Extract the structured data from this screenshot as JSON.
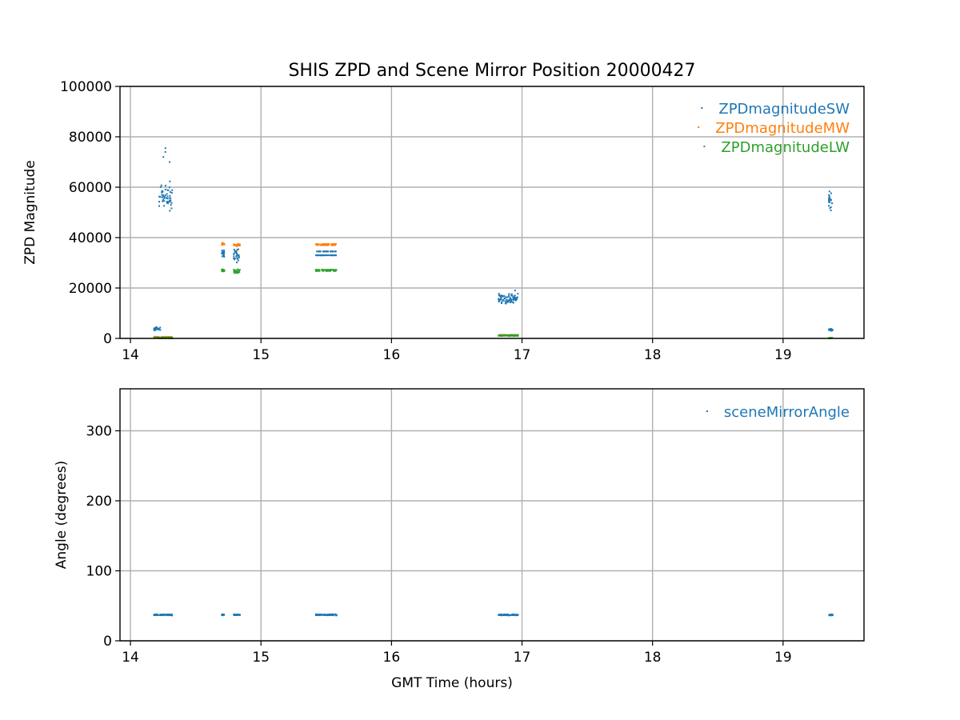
{
  "title": "SHIS ZPD and Scene Mirror Position 20000427",
  "colors": {
    "sw": "#1f77b4",
    "mw": "#ff7f0e",
    "lw": "#2ca02c",
    "angle": "#1f77b4",
    "grid": "#b0b0b0"
  },
  "chart_data": [
    {
      "type": "scatter",
      "title": "SHIS ZPD and Scene Mirror Position 20000427",
      "xlabel": "",
      "ylabel": "ZPD Magnitude",
      "xlim": [
        13.92,
        19.62
      ],
      "ylim": [
        0,
        100000
      ],
      "x_ticks": [
        14,
        15,
        16,
        17,
        18,
        19
      ],
      "x_tick_labels": [
        "14",
        "15",
        "16",
        "17",
        "18",
        "19"
      ],
      "y_ticks": [
        0,
        20000,
        40000,
        60000,
        80000,
        100000
      ],
      "y_tick_labels": [
        "0",
        "20000",
        "40000",
        "60000",
        "80000",
        "100000"
      ],
      "grid": true,
      "legend": "top-right",
      "series": [
        {
          "name": "ZPDmagnitudeSW",
          "color": "#1f77b4",
          "clusters": [
            {
              "x_range": [
                14.22,
                14.32
              ],
              "y_range": [
                48000,
                64000
              ],
              "outliers": [
                70000,
                72000,
                74000,
                75500
              ]
            },
            {
              "x_range": [
                14.18,
                14.23
              ],
              "y_range": [
                3000,
                4500
              ]
            },
            {
              "x_range": [
                14.7,
                14.72
              ],
              "y_range": [
                32000,
                35500
              ]
            },
            {
              "x_range": [
                14.79,
                14.84
              ],
              "y_range": [
                29000,
                36000
              ]
            },
            {
              "x_range": [
                15.42,
                15.58
              ],
              "y_values": [
                33000,
                34500
              ]
            },
            {
              "x_range": [
                16.82,
                16.97
              ],
              "y_range": [
                13000,
                18000
              ],
              "outliers": [
                19000
              ]
            },
            {
              "x_range": [
                19.35,
                19.38
              ],
              "y_range": [
                48000,
                61000
              ]
            },
            {
              "x_range": [
                19.35,
                19.38
              ],
              "y_range": [
                3000,
                4000
              ]
            }
          ]
        },
        {
          "name": "ZPDmagnitudeMW",
          "color": "#ff7f0e",
          "clusters": [
            {
              "x_range": [
                14.7,
                14.72
              ],
              "y_range": [
                37000,
                38000
              ]
            },
            {
              "x_range": [
                14.79,
                14.84
              ],
              "y_range": [
                36500,
                37500
              ]
            },
            {
              "x_range": [
                15.42,
                15.58
              ],
              "y_values": [
                37000,
                37400
              ]
            },
            {
              "x_range": [
                14.18,
                14.32
              ],
              "y_range": [
                300,
                700
              ]
            },
            {
              "x_range": [
                16.82,
                16.97
              ],
              "y_range": [
                1000,
                1500
              ]
            }
          ]
        },
        {
          "name": "ZPDmagnitudeLW",
          "color": "#2ca02c",
          "clusters": [
            {
              "x_range": [
                14.7,
                14.72
              ],
              "y_range": [
                26500,
                27500
              ]
            },
            {
              "x_range": [
                14.79,
                14.84
              ],
              "y_range": [
                25500,
                27500
              ]
            },
            {
              "x_range": [
                15.42,
                15.58
              ],
              "y_values": [
                26800,
                27200
              ]
            },
            {
              "x_range": [
                14.18,
                14.32
              ],
              "y_range": [
                0,
                400
              ]
            },
            {
              "x_range": [
                16.82,
                16.97
              ],
              "y_range": [
                900,
                1400
              ]
            },
            {
              "x_range": [
                19.35,
                19.38
              ],
              "y_range": [
                0,
                300
              ]
            }
          ]
        }
      ]
    },
    {
      "type": "scatter",
      "title": "",
      "xlabel": "GMT Time (hours)",
      "ylabel": "Angle (degrees)",
      "xlim": [
        13.92,
        19.62
      ],
      "ylim": [
        0,
        360
      ],
      "x_ticks": [
        14,
        15,
        16,
        17,
        18,
        19
      ],
      "x_tick_labels": [
        "14",
        "15",
        "16",
        "17",
        "18",
        "19"
      ],
      "y_ticks": [
        0,
        100,
        200,
        300
      ],
      "y_tick_labels": [
        "0",
        "100",
        "200",
        "300"
      ],
      "grid": true,
      "legend": "top-right",
      "series": [
        {
          "name": "sceneMirrorAngle",
          "color": "#1f77b4",
          "clusters": [
            {
              "x_range": [
                14.18,
                14.32
              ],
              "y_range": [
                36,
                38
              ]
            },
            {
              "x_range": [
                14.7,
                14.72
              ],
              "y_range": [
                36,
                38
              ]
            },
            {
              "x_range": [
                14.79,
                14.84
              ],
              "y_range": [
                36,
                38
              ]
            },
            {
              "x_range": [
                15.42,
                15.58
              ],
              "y_range": [
                36,
                38
              ]
            },
            {
              "x_range": [
                16.82,
                16.97
              ],
              "y_range": [
                36,
                38
              ]
            },
            {
              "x_range": [
                19.35,
                19.38
              ],
              "y_range": [
                36,
                38
              ]
            }
          ]
        }
      ]
    }
  ]
}
